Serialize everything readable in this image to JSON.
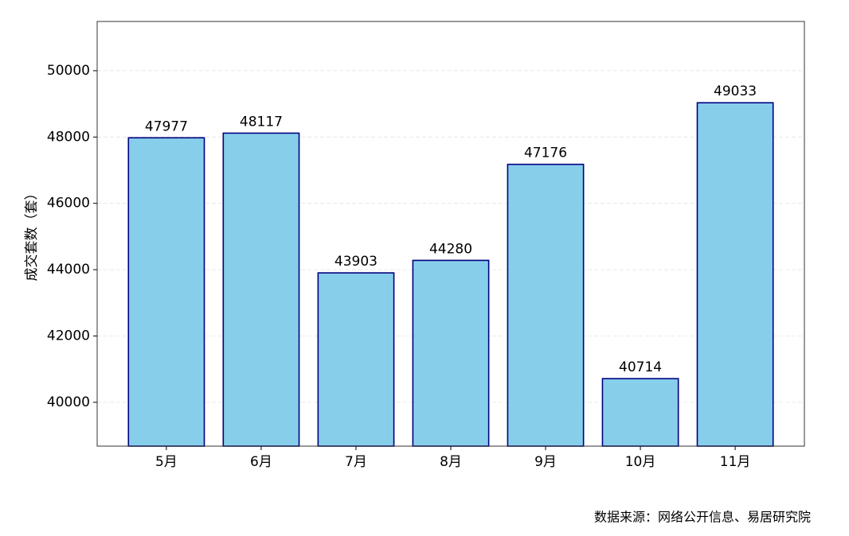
{
  "chart_data": {
    "type": "bar",
    "ylabel": "成交套数（套）",
    "categories": [
      "5月",
      "6月",
      "7月",
      "8月",
      "9月",
      "10月",
      "11月"
    ],
    "values": [
      47977,
      48117,
      43903,
      44280,
      47176,
      40714,
      49033
    ],
    "color": "#87ceeb",
    "edge_color": "#000080",
    "ylim": [
      38678.3,
      51484.65
    ],
    "yticks": [
      40000,
      42000,
      44000,
      46000,
      48000,
      50000
    ],
    "grid": true,
    "source": "数据来源：网络公开信息、易居研究院"
  }
}
